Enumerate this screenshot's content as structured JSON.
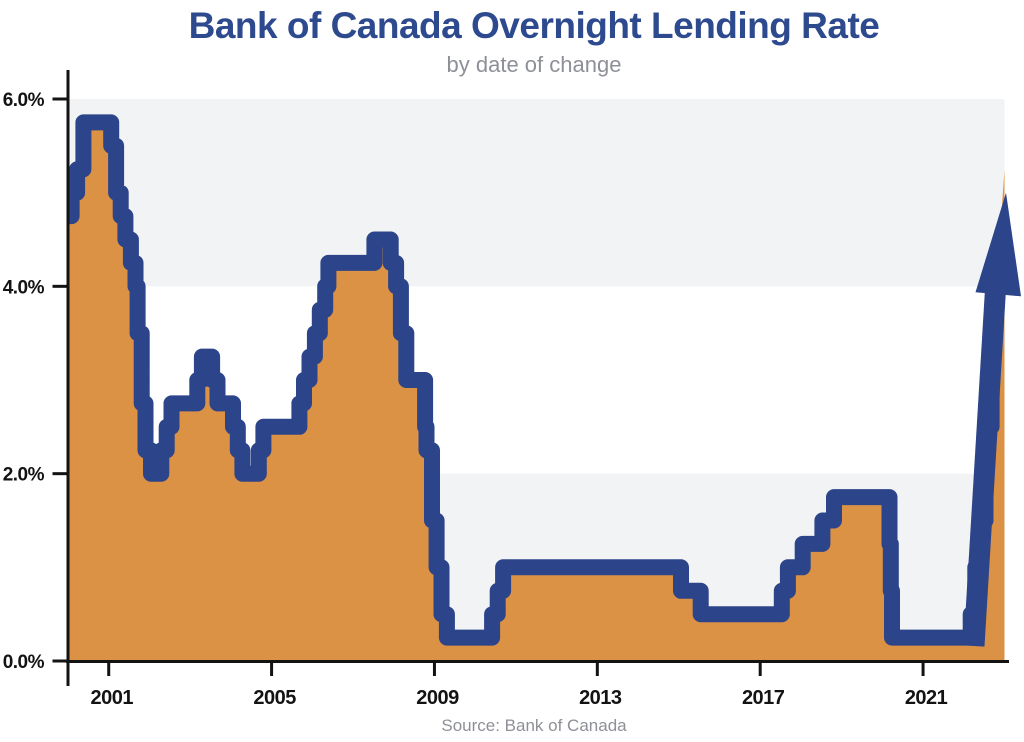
{
  "header": {
    "title": "Bank of Canada Overnight Lending Rate",
    "subtitle": "by date of change"
  },
  "footer": {
    "source": "Source: Bank of Canada"
  },
  "colors": {
    "line_blue": "#2c4489",
    "area_orange": "#dc9245",
    "band_gray": "#f2f3f4",
    "title_blue": "#2e4a8f",
    "muted_gray": "#8e9097",
    "axis_black": "#131313"
  },
  "chart_data": {
    "type": "area",
    "style": "step-after",
    "title": "Bank of Canada Overnight Lending Rate",
    "subtitle": "by date of change",
    "source": "Source: Bank of Canada",
    "xlabel": "",
    "ylabel": "",
    "grid": false,
    "legend": false,
    "x_range_years": [
      2000,
      2023.0
    ],
    "ylim": [
      0,
      6
    ],
    "y_axis": {
      "ticks": [
        {
          "value": 6,
          "label": "6.0%"
        },
        {
          "value": 4,
          "label": "4.0%"
        },
        {
          "value": 2,
          "label": "2.0%"
        },
        {
          "value": 0,
          "label": "0.0%"
        }
      ]
    },
    "x_axis": {
      "ticks": [
        {
          "year": 2001,
          "label": "2001"
        },
        {
          "year": 2005,
          "label": "2005"
        },
        {
          "year": 2009,
          "label": "2009"
        },
        {
          "year": 2013,
          "label": "2013"
        },
        {
          "year": 2017,
          "label": "2017"
        },
        {
          "year": 2021,
          "label": "2021"
        }
      ]
    },
    "background_bands_pct": [
      [
        4,
        6
      ],
      [
        0,
        2
      ]
    ],
    "points": [
      {
        "date": "1999-11-17",
        "rate": 4.75
      },
      {
        "date": "2000-02-03",
        "rate": 5.0
      },
      {
        "date": "2000-03-22",
        "rate": 5.25
      },
      {
        "date": "2000-05-17",
        "rate": 5.75
      },
      {
        "date": "2001-01-23",
        "rate": 5.5
      },
      {
        "date": "2001-03-06",
        "rate": 5.0
      },
      {
        "date": "2001-04-17",
        "rate": 4.75
      },
      {
        "date": "2001-05-29",
        "rate": 4.5
      },
      {
        "date": "2001-07-17",
        "rate": 4.25
      },
      {
        "date": "2001-08-28",
        "rate": 4.0
      },
      {
        "date": "2001-09-17",
        "rate": 3.5
      },
      {
        "date": "2001-10-23",
        "rate": 2.75
      },
      {
        "date": "2001-11-27",
        "rate": 2.25
      },
      {
        "date": "2002-01-15",
        "rate": 2.0
      },
      {
        "date": "2002-04-16",
        "rate": 2.25
      },
      {
        "date": "2002-06-04",
        "rate": 2.5
      },
      {
        "date": "2002-07-16",
        "rate": 2.75
      },
      {
        "date": "2003-03-04",
        "rate": 3.0
      },
      {
        "date": "2003-04-15",
        "rate": 3.25
      },
      {
        "date": "2003-07-15",
        "rate": 3.0
      },
      {
        "date": "2003-09-03",
        "rate": 2.75
      },
      {
        "date": "2004-01-20",
        "rate": 2.5
      },
      {
        "date": "2004-03-02",
        "rate": 2.25
      },
      {
        "date": "2004-04-13",
        "rate": 2.0
      },
      {
        "date": "2004-09-08",
        "rate": 2.25
      },
      {
        "date": "2004-10-19",
        "rate": 2.5
      },
      {
        "date": "2005-09-07",
        "rate": 2.75
      },
      {
        "date": "2005-10-18",
        "rate": 3.0
      },
      {
        "date": "2005-12-06",
        "rate": 3.25
      },
      {
        "date": "2006-01-24",
        "rate": 3.5
      },
      {
        "date": "2006-03-07",
        "rate": 3.75
      },
      {
        "date": "2006-04-25",
        "rate": 4.0
      },
      {
        "date": "2006-05-24",
        "rate": 4.25
      },
      {
        "date": "2007-07-10",
        "rate": 4.5
      },
      {
        "date": "2007-12-04",
        "rate": 4.25
      },
      {
        "date": "2008-01-22",
        "rate": 4.0
      },
      {
        "date": "2008-03-04",
        "rate": 3.5
      },
      {
        "date": "2008-04-22",
        "rate": 3.0
      },
      {
        "date": "2008-10-08",
        "rate": 2.5
      },
      {
        "date": "2008-10-21",
        "rate": 2.25
      },
      {
        "date": "2008-12-09",
        "rate": 1.5
      },
      {
        "date": "2009-01-20",
        "rate": 1.0
      },
      {
        "date": "2009-03-03",
        "rate": 0.5
      },
      {
        "date": "2009-04-21",
        "rate": 0.25
      },
      {
        "date": "2010-06-01",
        "rate": 0.5
      },
      {
        "date": "2010-07-20",
        "rate": 0.75
      },
      {
        "date": "2010-09-08",
        "rate": 1.0
      },
      {
        "date": "2015-01-21",
        "rate": 0.75
      },
      {
        "date": "2015-07-15",
        "rate": 0.5
      },
      {
        "date": "2017-07-12",
        "rate": 0.75
      },
      {
        "date": "2017-09-06",
        "rate": 1.0
      },
      {
        "date": "2018-01-17",
        "rate": 1.25
      },
      {
        "date": "2018-07-11",
        "rate": 1.5
      },
      {
        "date": "2018-10-24",
        "rate": 1.75
      },
      {
        "date": "2020-03-04",
        "rate": 1.25
      },
      {
        "date": "2020-03-16",
        "rate": 0.75
      },
      {
        "date": "2020-03-27",
        "rate": 0.25
      },
      {
        "date": "2022-03-02",
        "rate": 0.5
      },
      {
        "date": "2022-04-13",
        "rate": 1.0
      },
      {
        "date": "2022-06-01",
        "rate": 1.5
      },
      {
        "date": "2022-07-13",
        "rate": 2.5
      },
      {
        "date": "2022-09-07",
        "rate": 3.25
      }
    ],
    "arrow": {
      "direction": "up",
      "tip_rate_pct": 5.0,
      "edge_rate_pct": 5.25
    }
  }
}
